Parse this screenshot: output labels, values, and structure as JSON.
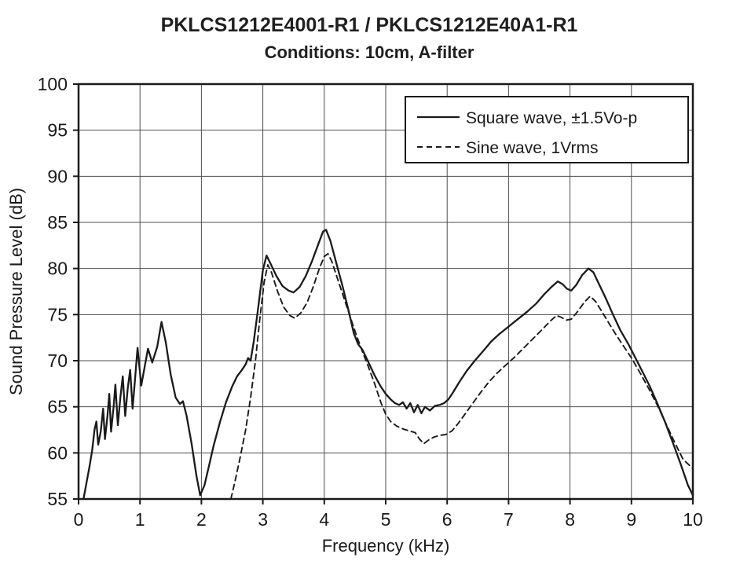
{
  "chart_data": {
    "type": "line",
    "title": "PKLCS1212E4001-R1 / PKLCS1212E40A1-R1",
    "subtitle": "Conditions: 10cm, A-filter",
    "xlabel": "Frequency (kHz)",
    "ylabel": "Sound Pressure Level (dB)",
    "xlim": [
      0,
      10
    ],
    "ylim": [
      55,
      100
    ],
    "xticks": [
      0,
      1,
      2,
      3,
      4,
      5,
      6,
      7,
      8,
      9,
      10
    ],
    "yticks": [
      55,
      60,
      65,
      70,
      75,
      80,
      85,
      90,
      95,
      100
    ],
    "grid": true,
    "legend_position": "top-right",
    "line_color": "#1a1a1a",
    "background_color": "#ffffff",
    "series": [
      {
        "name": "Square wave, ±1.5Vo-p",
        "style": "solid",
        "points": [
          [
            0.08,
            55.0
          ],
          [
            0.13,
            56.8
          ],
          [
            0.18,
            58.6
          ],
          [
            0.22,
            60.2
          ],
          [
            0.26,
            62.5
          ],
          [
            0.29,
            63.4
          ],
          [
            0.32,
            60.9
          ],
          [
            0.36,
            62.3
          ],
          [
            0.4,
            64.8
          ],
          [
            0.43,
            61.5
          ],
          [
            0.47,
            64.0
          ],
          [
            0.5,
            66.4
          ],
          [
            0.53,
            62.3
          ],
          [
            0.57,
            65.0
          ],
          [
            0.6,
            67.4
          ],
          [
            0.64,
            63.0
          ],
          [
            0.68,
            66.0
          ],
          [
            0.72,
            68.3
          ],
          [
            0.76,
            64.0
          ],
          [
            0.8,
            67.0
          ],
          [
            0.84,
            69.0
          ],
          [
            0.88,
            64.8
          ],
          [
            0.92,
            68.0
          ],
          [
            0.96,
            71.4
          ],
          [
            1.02,
            67.3
          ],
          [
            1.08,
            69.5
          ],
          [
            1.13,
            71.3
          ],
          [
            1.2,
            69.8
          ],
          [
            1.28,
            71.5
          ],
          [
            1.35,
            74.2
          ],
          [
            1.42,
            72.0
          ],
          [
            1.5,
            68.5
          ],
          [
            1.58,
            66.0
          ],
          [
            1.65,
            65.3
          ],
          [
            1.7,
            65.6
          ],
          [
            1.76,
            64.0
          ],
          [
            1.84,
            61.0
          ],
          [
            1.92,
            57.5
          ],
          [
            1.98,
            55.4
          ],
          [
            2.05,
            56.5
          ],
          [
            2.12,
            58.5
          ],
          [
            2.2,
            60.8
          ],
          [
            2.3,
            63.3
          ],
          [
            2.4,
            65.5
          ],
          [
            2.5,
            67.2
          ],
          [
            2.58,
            68.3
          ],
          [
            2.66,
            69.0
          ],
          [
            2.72,
            69.6
          ],
          [
            2.76,
            70.3
          ],
          [
            2.8,
            70.0
          ],
          [
            2.85,
            72.0
          ],
          [
            2.92,
            75.5
          ],
          [
            3.0,
            79.8
          ],
          [
            3.06,
            81.4
          ],
          [
            3.12,
            80.6
          ],
          [
            3.22,
            79.2
          ],
          [
            3.32,
            78.1
          ],
          [
            3.42,
            77.6
          ],
          [
            3.5,
            77.4
          ],
          [
            3.6,
            78.0
          ],
          [
            3.7,
            79.2
          ],
          [
            3.8,
            80.8
          ],
          [
            3.9,
            82.6
          ],
          [
            3.98,
            84.0
          ],
          [
            4.03,
            84.2
          ],
          [
            4.1,
            83.0
          ],
          [
            4.2,
            80.5
          ],
          [
            4.3,
            78.0
          ],
          [
            4.4,
            75.3
          ],
          [
            4.48,
            73.0
          ],
          [
            4.55,
            71.8
          ],
          [
            4.62,
            71.2
          ],
          [
            4.72,
            69.8
          ],
          [
            4.82,
            68.4
          ],
          [
            4.92,
            67.2
          ],
          [
            5.0,
            66.4
          ],
          [
            5.08,
            65.8
          ],
          [
            5.15,
            65.4
          ],
          [
            5.22,
            65.2
          ],
          [
            5.28,
            65.5
          ],
          [
            5.34,
            64.8
          ],
          [
            5.4,
            65.4
          ],
          [
            5.46,
            64.4
          ],
          [
            5.52,
            65.2
          ],
          [
            5.58,
            64.3
          ],
          [
            5.64,
            65.0
          ],
          [
            5.72,
            64.6
          ],
          [
            5.8,
            65.1
          ],
          [
            5.88,
            65.2
          ],
          [
            5.95,
            65.4
          ],
          [
            6.02,
            65.8
          ],
          [
            6.1,
            66.6
          ],
          [
            6.2,
            67.7
          ],
          [
            6.32,
            68.9
          ],
          [
            6.45,
            70.0
          ],
          [
            6.58,
            71.0
          ],
          [
            6.72,
            72.1
          ],
          [
            6.85,
            72.9
          ],
          [
            7.0,
            73.7
          ],
          [
            7.15,
            74.5
          ],
          [
            7.3,
            75.3
          ],
          [
            7.45,
            76.2
          ],
          [
            7.58,
            77.2
          ],
          [
            7.7,
            78.0
          ],
          [
            7.8,
            78.6
          ],
          [
            7.88,
            78.3
          ],
          [
            7.95,
            77.8
          ],
          [
            8.02,
            77.6
          ],
          [
            8.1,
            78.2
          ],
          [
            8.2,
            79.3
          ],
          [
            8.3,
            80.0
          ],
          [
            8.38,
            79.6
          ],
          [
            8.48,
            78.2
          ],
          [
            8.58,
            76.8
          ],
          [
            8.7,
            75.0
          ],
          [
            8.82,
            73.3
          ],
          [
            8.95,
            71.8
          ],
          [
            9.05,
            70.5
          ],
          [
            9.18,
            68.8
          ],
          [
            9.3,
            67.2
          ],
          [
            9.42,
            65.4
          ],
          [
            9.55,
            63.3
          ],
          [
            9.68,
            61.0
          ],
          [
            9.8,
            58.8
          ],
          [
            9.92,
            56.5
          ],
          [
            10.0,
            55.4
          ]
        ]
      },
      {
        "name": "Sine wave, 1Vrms",
        "style": "dashed",
        "points": [
          [
            2.48,
            55.0
          ],
          [
            2.55,
            57.0
          ],
          [
            2.63,
            59.5
          ],
          [
            2.72,
            62.5
          ],
          [
            2.8,
            66.0
          ],
          [
            2.88,
            70.0
          ],
          [
            2.95,
            74.5
          ],
          [
            3.02,
            78.5
          ],
          [
            3.08,
            80.4
          ],
          [
            3.14,
            79.6
          ],
          [
            3.24,
            77.5
          ],
          [
            3.34,
            75.8
          ],
          [
            3.44,
            74.9
          ],
          [
            3.52,
            74.6
          ],
          [
            3.62,
            75.2
          ],
          [
            3.72,
            76.3
          ],
          [
            3.82,
            78.0
          ],
          [
            3.92,
            80.0
          ],
          [
            4.0,
            81.3
          ],
          [
            4.06,
            81.6
          ],
          [
            4.12,
            80.8
          ],
          [
            4.22,
            78.8
          ],
          [
            4.32,
            76.8
          ],
          [
            4.42,
            74.8
          ],
          [
            4.52,
            72.8
          ],
          [
            4.62,
            71.0
          ],
          [
            4.72,
            69.3
          ],
          [
            4.82,
            67.5
          ],
          [
            4.92,
            65.5
          ],
          [
            5.0,
            64.2
          ],
          [
            5.08,
            63.4
          ],
          [
            5.18,
            62.9
          ],
          [
            5.28,
            62.6
          ],
          [
            5.38,
            62.4
          ],
          [
            5.48,
            62.2
          ],
          [
            5.55,
            61.5
          ],
          [
            5.62,
            61.0
          ],
          [
            5.7,
            61.4
          ],
          [
            5.78,
            61.7
          ],
          [
            5.88,
            61.9
          ],
          [
            5.98,
            62.0
          ],
          [
            6.08,
            62.4
          ],
          [
            6.18,
            63.2
          ],
          [
            6.3,
            64.3
          ],
          [
            6.42,
            65.4
          ],
          [
            6.55,
            66.6
          ],
          [
            6.68,
            67.7
          ],
          [
            6.82,
            68.7
          ],
          [
            6.95,
            69.5
          ],
          [
            7.1,
            70.4
          ],
          [
            7.25,
            71.4
          ],
          [
            7.4,
            72.4
          ],
          [
            7.55,
            73.4
          ],
          [
            7.68,
            74.3
          ],
          [
            7.78,
            74.9
          ],
          [
            7.86,
            74.7
          ],
          [
            7.94,
            74.4
          ],
          [
            8.02,
            74.5
          ],
          [
            8.12,
            75.3
          ],
          [
            8.24,
            76.4
          ],
          [
            8.33,
            77.0
          ],
          [
            8.42,
            76.4
          ],
          [
            8.52,
            75.3
          ],
          [
            8.64,
            74.0
          ],
          [
            8.76,
            72.7
          ],
          [
            8.88,
            71.5
          ],
          [
            9.0,
            70.3
          ],
          [
            9.14,
            68.7
          ],
          [
            9.28,
            67.0
          ],
          [
            9.42,
            65.2
          ],
          [
            9.56,
            63.2
          ],
          [
            9.7,
            61.2
          ],
          [
            9.84,
            59.3
          ],
          [
            10.0,
            58.3
          ]
        ]
      }
    ]
  }
}
